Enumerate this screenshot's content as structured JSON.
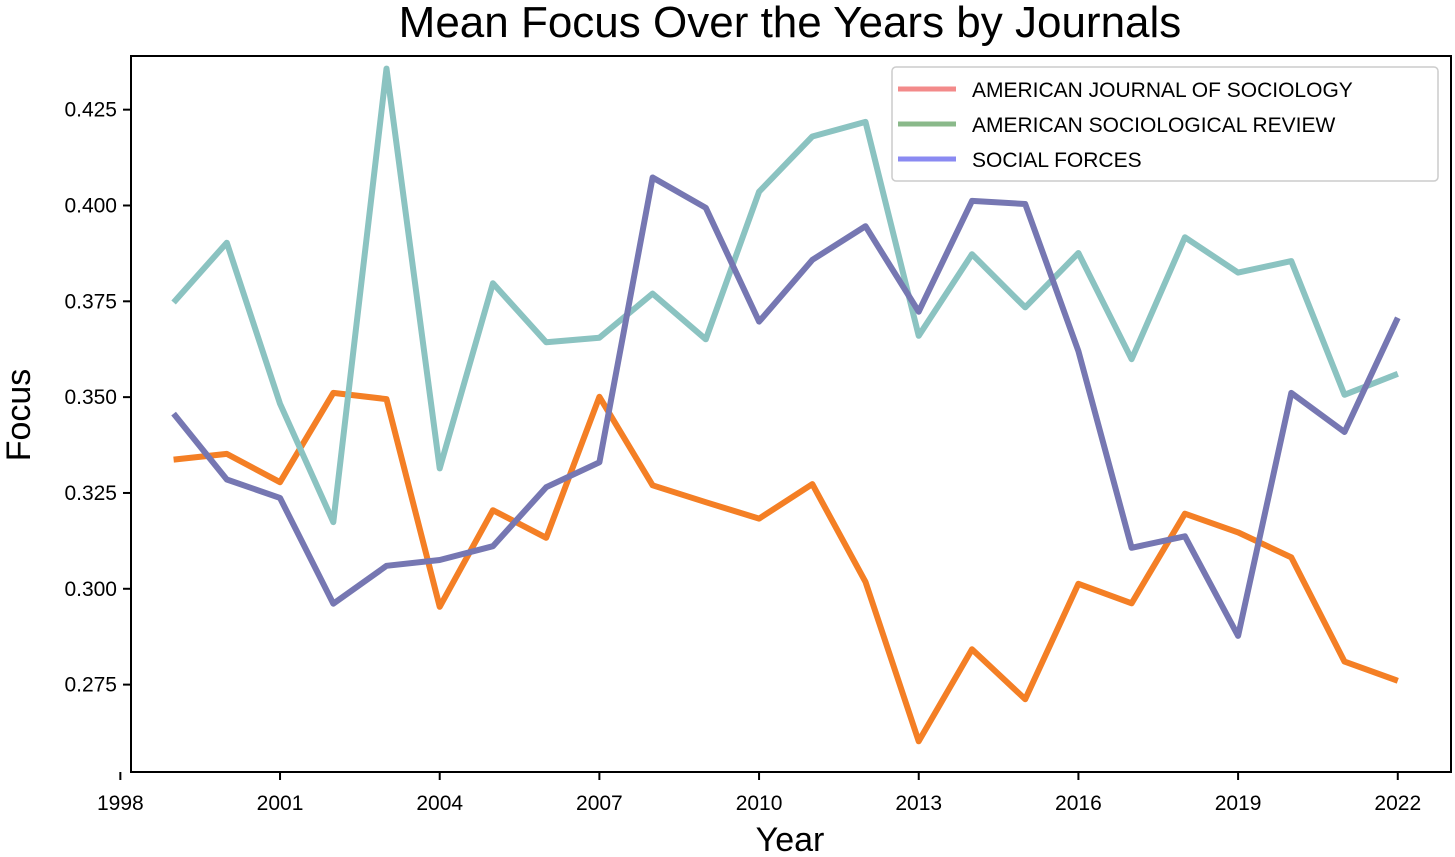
{
  "chart_data": {
    "type": "line",
    "title": "Mean Focus Over the Years by Journals",
    "xlabel": "Year",
    "ylabel": "Focus",
    "xlim": [
      1998.2,
      2023.0
    ],
    "ylim": [
      0.2522,
      0.439
    ],
    "x_ticks": [
      1998,
      2001,
      2004,
      2007,
      2010,
      2013,
      2016,
      2019,
      2022
    ],
    "y_ticks": [
      0.275,
      0.3,
      0.325,
      0.35,
      0.375,
      0.4,
      0.425
    ],
    "grid": false,
    "legend_position": "top-right",
    "x": [
      1999,
      2000,
      2001,
      2002,
      2003,
      2004,
      2005,
      2006,
      2007,
      2008,
      2009,
      2010,
      2011,
      2012,
      2013,
      2014,
      2015,
      2016,
      2017,
      2018,
      2019,
      2020,
      2021,
      2022
    ],
    "series": [
      {
        "name": "AMERICAN JOURNAL OF SOCIOLOGY",
        "legend_color": "#f38a8a",
        "line_color": "#f47f25",
        "values": [
          0.3337,
          0.3352,
          0.3278,
          0.3511,
          0.3495,
          0.2953,
          0.3205,
          0.3133,
          0.3501,
          0.327,
          0.3226,
          0.3183,
          0.3273,
          0.3018,
          0.2602,
          0.2842,
          0.2712,
          0.3013,
          0.2962,
          0.3196,
          0.3147,
          0.3082,
          0.281,
          0.276
        ]
      },
      {
        "name": "AMERICAN SOCIOLOGICAL REVIEW",
        "legend_color": "#8ab98a",
        "line_color": "#8bc3c1",
        "values": [
          0.3747,
          0.3903,
          0.3483,
          0.3174,
          0.4357,
          0.3314,
          0.3797,
          0.3643,
          0.3655,
          0.377,
          0.3651,
          0.4036,
          0.418,
          0.4218,
          0.366,
          0.3873,
          0.3734,
          0.3876,
          0.3599,
          0.3917,
          0.3825,
          0.3855,
          0.3506,
          0.3561
        ]
      },
      {
        "name": "SOCIAL FORCES",
        "legend_color": "#8a8af2",
        "line_color": "#7677b2",
        "values": [
          0.3457,
          0.3285,
          0.3237,
          0.2961,
          0.306,
          0.3075,
          0.3111,
          0.3265,
          0.333,
          0.4073,
          0.3994,
          0.3697,
          0.3858,
          0.3946,
          0.3723,
          0.4012,
          0.4004,
          0.362,
          0.3107,
          0.3137,
          0.2877,
          0.3511,
          0.3409,
          0.3707
        ]
      }
    ]
  }
}
